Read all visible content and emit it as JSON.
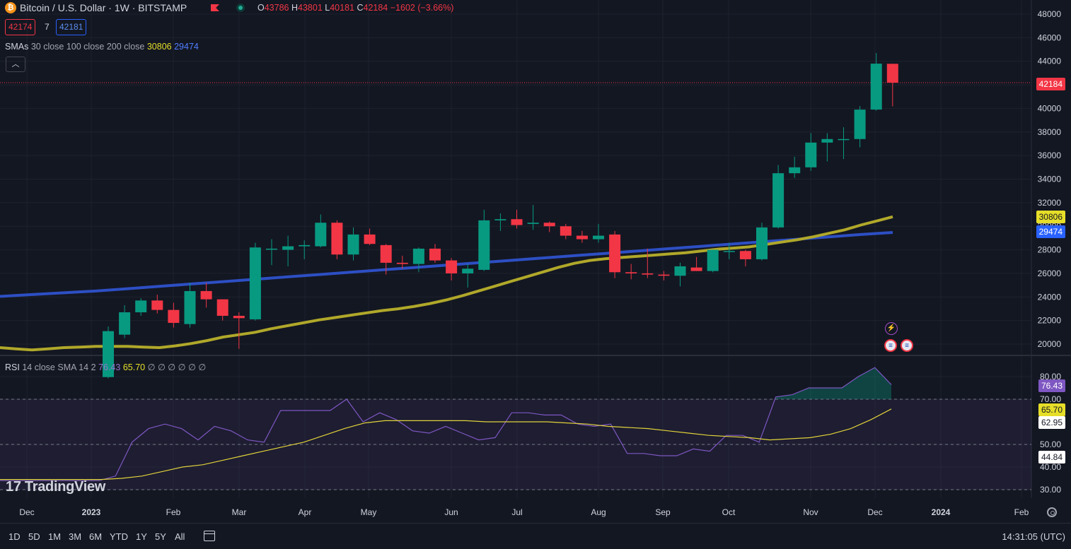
{
  "header": {
    "title": "Bitcoin / U.S. Dollar · 1W · BITSTAMP",
    "ohlc": [
      {
        "k": "O",
        "v": "43786"
      },
      {
        "k": "H",
        "v": "43801"
      },
      {
        "k": "L",
        "v": "40181"
      },
      {
        "k": "C",
        "v": "42184"
      }
    ],
    "change": "−1602 (−3.66%)",
    "bid": "42174",
    "spread": "7",
    "ask": "42181"
  },
  "sma_legend": {
    "name": "SMAs",
    "params": "30 close 100 close 200 close",
    "v30": "30806",
    "v100": "29474"
  },
  "rsi_legend": {
    "name": "RSI",
    "params": "14 close SMA 14 2",
    "rsi": "76.43",
    "sma": "65.70",
    "empties": "∅ ∅ ∅ ∅ ∅ ∅"
  },
  "price_labels": {
    "last": "42184",
    "sma30": "30806",
    "sma100": "29474"
  },
  "rsi_labels": {
    "rsi": "76.43",
    "sma": "65.70",
    "a": "62.95",
    "b": "44.84"
  },
  "brand": "TradingView",
  "timeframes": [
    "1D",
    "5D",
    "1M",
    "3M",
    "6M",
    "YTD",
    "1Y",
    "5Y",
    "All"
  ],
  "clock": "14:31:05 (UTC)",
  "colors": {
    "up": "#089981",
    "down": "#f23645",
    "sma30": "#b0a82a",
    "sma100": "#2d4fc4",
    "rsi": "#7e57c2",
    "rsi_sma": "#e0d23a"
  },
  "icons": [
    "bitcoin-icon",
    "flag-icon",
    "market-status-icon",
    "collapse-icon",
    "bolt-event-icon",
    "us-flag-event-icon",
    "calendar-icon",
    "settings-icon"
  ],
  "chart_data": [
    {
      "type": "candlestick",
      "title": "Bitcoin / U.S. Dollar · 1W · BITSTAMP",
      "x_ticks": [
        "Dec",
        "2023",
        "Feb",
        "Mar",
        "Apr",
        "May",
        "Jun",
        "Jul",
        "Aug",
        "Sep",
        "Oct",
        "Nov",
        "Dec",
        "2024",
        "Feb"
      ],
      "y_ticks": [
        20000,
        22000,
        24000,
        26000,
        28000,
        30000,
        32000,
        34000,
        36000,
        38000,
        40000,
        42000,
        44000,
        46000,
        48000
      ],
      "ylim": [
        19000,
        48500
      ],
      "candles": [
        {
          "x": "2023-01-09",
          "o": 17200,
          "h": 21500,
          "l": 17100,
          "c": 21100
        },
        {
          "x": "2023-01-16",
          "o": 20800,
          "h": 23300,
          "l": 20500,
          "c": 22700
        },
        {
          "x": "2023-01-23",
          "o": 22700,
          "h": 23900,
          "l": 22400,
          "c": 23700
        },
        {
          "x": "2023-01-30",
          "o": 23700,
          "h": 24200,
          "l": 22600,
          "c": 22900
        },
        {
          "x": "2023-02-06",
          "o": 22900,
          "h": 23500,
          "l": 21400,
          "c": 21800
        },
        {
          "x": "2023-02-13",
          "o": 21700,
          "h": 25200,
          "l": 21400,
          "c": 24500
        },
        {
          "x": "2023-02-20",
          "o": 24500,
          "h": 25200,
          "l": 23100,
          "c": 23800
        },
        {
          "x": "2023-02-27",
          "o": 23800,
          "h": 23800,
          "l": 22000,
          "c": 22400
        },
        {
          "x": "2023-03-06",
          "o": 22400,
          "h": 22700,
          "l": 19600,
          "c": 22200
        },
        {
          "x": "2023-03-13",
          "o": 22100,
          "h": 28600,
          "l": 22000,
          "c": 28200
        },
        {
          "x": "2023-03-20",
          "o": 28100,
          "h": 28900,
          "l": 26700,
          "c": 28100
        },
        {
          "x": "2023-03-27",
          "o": 28000,
          "h": 29200,
          "l": 26600,
          "c": 28300
        },
        {
          "x": "2023-04-03",
          "o": 28300,
          "h": 28800,
          "l": 27200,
          "c": 28400
        },
        {
          "x": "2023-04-10",
          "o": 28300,
          "h": 31000,
          "l": 28200,
          "c": 30300
        },
        {
          "x": "2023-04-17",
          "o": 30300,
          "h": 30500,
          "l": 27200,
          "c": 27600
        },
        {
          "x": "2023-04-24",
          "o": 27600,
          "h": 29900,
          "l": 27100,
          "c": 29300
        },
        {
          "x": "2023-05-01",
          "o": 29300,
          "h": 29800,
          "l": 28400,
          "c": 28500
        },
        {
          "x": "2023-05-08",
          "o": 28400,
          "h": 28500,
          "l": 25900,
          "c": 26900
        },
        {
          "x": "2023-05-15",
          "o": 26900,
          "h": 27500,
          "l": 26400,
          "c": 26800
        },
        {
          "x": "2023-05-22",
          "o": 26800,
          "h": 28200,
          "l": 26100,
          "c": 28100
        },
        {
          "x": "2023-05-29",
          "o": 28100,
          "h": 28500,
          "l": 26900,
          "c": 27100
        },
        {
          "x": "2023-06-05",
          "o": 27100,
          "h": 27300,
          "l": 25400,
          "c": 26000
        },
        {
          "x": "2023-06-12",
          "o": 26000,
          "h": 26800,
          "l": 24800,
          "c": 26400
        },
        {
          "x": "2023-06-19",
          "o": 26300,
          "h": 31400,
          "l": 26200,
          "c": 30500
        },
        {
          "x": "2023-06-26",
          "o": 30500,
          "h": 31100,
          "l": 29600,
          "c": 30600
        },
        {
          "x": "2023-07-03",
          "o": 30600,
          "h": 31400,
          "l": 29800,
          "c": 30100
        },
        {
          "x": "2023-07-10",
          "o": 30200,
          "h": 31800,
          "l": 29700,
          "c": 30300
        },
        {
          "x": "2023-07-17",
          "o": 30300,
          "h": 30400,
          "l": 29500,
          "c": 30000
        },
        {
          "x": "2023-07-24",
          "o": 30000,
          "h": 30200,
          "l": 28900,
          "c": 29200
        },
        {
          "x": "2023-07-31",
          "o": 29200,
          "h": 29600,
          "l": 28600,
          "c": 28900
        },
        {
          "x": "2023-08-07",
          "o": 28900,
          "h": 30200,
          "l": 28600,
          "c": 29200
        },
        {
          "x": "2023-08-14",
          "o": 29300,
          "h": 29600,
          "l": 25600,
          "c": 26100
        },
        {
          "x": "2023-08-21",
          "o": 26100,
          "h": 26800,
          "l": 25500,
          "c": 26000
        },
        {
          "x": "2023-08-28",
          "o": 26000,
          "h": 28100,
          "l": 25600,
          "c": 25900
        },
        {
          "x": "2023-09-04",
          "o": 25900,
          "h": 26200,
          "l": 25400,
          "c": 25800
        },
        {
          "x": "2023-09-11",
          "o": 25800,
          "h": 26900,
          "l": 24900,
          "c": 26600
        },
        {
          "x": "2023-09-18",
          "o": 26500,
          "h": 27400,
          "l": 26200,
          "c": 26200
        },
        {
          "x": "2023-09-25",
          "o": 26200,
          "h": 28000,
          "l": 26100,
          "c": 28000
        },
        {
          "x": "2023-10-02",
          "o": 27900,
          "h": 28600,
          "l": 27200,
          "c": 27900
        },
        {
          "x": "2023-10-09",
          "o": 27900,
          "h": 28000,
          "l": 26600,
          "c": 27200
        },
        {
          "x": "2023-10-16",
          "o": 27200,
          "h": 30300,
          "l": 27100,
          "c": 29900
        },
        {
          "x": "2023-10-23",
          "o": 29900,
          "h": 35200,
          "l": 29800,
          "c": 34500
        },
        {
          "x": "2023-10-30",
          "o": 34500,
          "h": 35900,
          "l": 34100,
          "c": 35000
        },
        {
          "x": "2023-11-06",
          "o": 35000,
          "h": 37900,
          "l": 34700,
          "c": 37100
        },
        {
          "x": "2023-11-13",
          "o": 37100,
          "h": 37900,
          "l": 35500,
          "c": 37400
        },
        {
          "x": "2023-11-20",
          "o": 37400,
          "h": 38400,
          "l": 35700,
          "c": 37400
        },
        {
          "x": "2023-11-27",
          "o": 37400,
          "h": 40200,
          "l": 36700,
          "c": 39900
        },
        {
          "x": "2023-12-04",
          "o": 39900,
          "h": 44700,
          "l": 39800,
          "c": 43800
        },
        {
          "x": "2023-12-11",
          "o": 43786,
          "h": 43801,
          "l": 40181,
          "c": 42184
        }
      ],
      "series": [
        {
          "name": "SMA 30",
          "values": [
            19700,
            19600,
            19500,
            19600,
            19700,
            19750,
            19800,
            19800,
            19800,
            19750,
            19700,
            19850,
            20050,
            20300,
            20600,
            20800,
            21000,
            21300,
            21550,
            21800,
            22050,
            22250,
            22450,
            22650,
            22850,
            23000,
            23200,
            23450,
            23750,
            24100,
            24500,
            24900,
            25300,
            25700,
            26100,
            26500,
            26850,
            27100,
            27250,
            27350,
            27450,
            27550,
            27650,
            27750,
            27900,
            28050,
            28150,
            28250,
            28450,
            28650,
            28850,
            29100,
            29400,
            29700,
            30100,
            30450,
            30806
          ]
        },
        {
          "name": "SMA 100",
          "values": [
            24050,
            24200,
            24350,
            24500,
            24700,
            24900,
            25100,
            25300,
            25500,
            25700,
            25900,
            26100,
            26300,
            26500,
            26700,
            26900,
            27100,
            27300,
            27500,
            27700,
            27900,
            28100,
            28300,
            28500,
            28700,
            28900,
            29100,
            29300,
            29474
          ]
        },
        {
          "name": "Last price",
          "value": 42184
        }
      ]
    },
    {
      "type": "line",
      "title": "RSI 14 close SMA 14 2",
      "y_ticks": [
        30,
        40,
        50,
        70,
        80
      ],
      "ylim": [
        27,
        85
      ],
      "bands": [
        30,
        50,
        70
      ],
      "series": [
        {
          "name": "RSI",
          "values": [
            34,
            34,
            34,
            34,
            34,
            34,
            34,
            36,
            51,
            57,
            59,
            57,
            52,
            58,
            56,
            52,
            51,
            65,
            65,
            65,
            65,
            70,
            60,
            64,
            61,
            56,
            55,
            58,
            55,
            52,
            53,
            64,
            64,
            63,
            63,
            59,
            58,
            59,
            46,
            46,
            45,
            45,
            48,
            47,
            54,
            54,
            51,
            71,
            72,
            75,
            75,
            75,
            80,
            84,
            76.43
          ]
        },
        {
          "name": "RSI SMA",
          "values": [
            34.5,
            34.5,
            34.5,
            34.5,
            34.5,
            34.5,
            35,
            36,
            38,
            40,
            41,
            43,
            45,
            47,
            49,
            51,
            54,
            57,
            59.5,
            60.5,
            60.5,
            60.5,
            60.5,
            60.5,
            60,
            60,
            60,
            60,
            59.5,
            59,
            58,
            57.5,
            57,
            56,
            55,
            54,
            53.5,
            53,
            52,
            52.5,
            53,
            54.5,
            57,
            61,
            65.7
          ]
        }
      ]
    }
  ]
}
